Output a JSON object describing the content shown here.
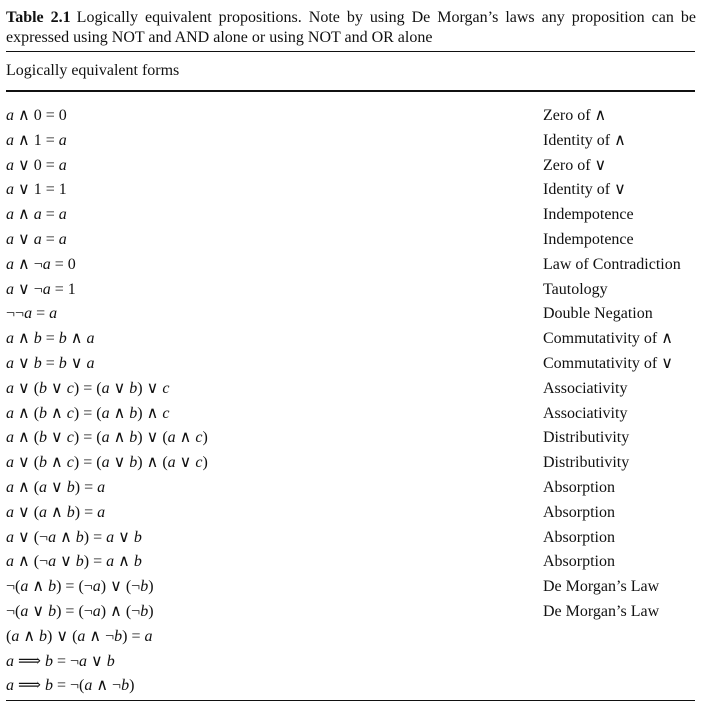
{
  "caption": {
    "label": "Table 2.1",
    "text": "Logically equivalent propositions. Note by using De Morgan’s laws any proposition can be expressed using NOT and AND alone or using NOT and OR alone"
  },
  "header": "Logically equivalent forms",
  "rows": [
    {
      "formula": "a ∧ 0 = 0",
      "name": "Zero of ∧"
    },
    {
      "formula": "a ∧ 1 = a",
      "name": "Identity of ∧"
    },
    {
      "formula": "a ∨ 0 = a",
      "name": "Zero of ∨"
    },
    {
      "formula": "a ∨ 1 = 1",
      "name": "Identity of ∨"
    },
    {
      "formula": "a ∧ a = a",
      "name": "Indempotence"
    },
    {
      "formula": "a ∨ a = a",
      "name": "Indempotence"
    },
    {
      "formula": "a ∧ ¬a = 0",
      "name": "Law of Contradiction"
    },
    {
      "formula": "a ∨ ¬a = 1",
      "name": "Tautology"
    },
    {
      "formula": "¬¬a = a",
      "name": "Double Negation"
    },
    {
      "formula": "a ∧ b = b ∧ a",
      "name": "Commutativity of ∧"
    },
    {
      "formula": "a ∨ b = b ∨ a",
      "name": "Commutativity of ∨"
    },
    {
      "formula": "a ∨ (b ∨ c) = (a ∨ b) ∨ c",
      "name": "Associativity"
    },
    {
      "formula": "a ∧ (b ∧ c) = (a ∧ b) ∧ c",
      "name": "Associativity"
    },
    {
      "formula": "a ∧ (b ∨ c) = (a ∧ b) ∨ (a ∧ c)",
      "name": "Distributivity"
    },
    {
      "formula": "a ∨ (b ∧ c) = (a ∨ b) ∧ (a ∨ c)",
      "name": "Distributivity"
    },
    {
      "formula": "a ∧ (a ∨ b) = a",
      "name": "Absorption"
    },
    {
      "formula": "a ∨ (a ∧ b) = a",
      "name": "Absorption"
    },
    {
      "formula": "a ∨ (¬a ∧ b) = a ∨ b",
      "name": "Absorption"
    },
    {
      "formula": "a ∧ (¬a ∨ b) = a ∧ b",
      "name": "Absorption"
    },
    {
      "formula": "¬(a ∧ b) = (¬a) ∨ (¬b)",
      "name": "De Morgan’s Law"
    },
    {
      "formula": "¬(a ∨ b) = (¬a) ∧ (¬b)",
      "name": "De Morgan’s Law"
    },
    {
      "formula": "(a ∧ b) ∨ (a ∧ ¬b) = a",
      "name": ""
    },
    {
      "formula": "a ⟹ b = ¬a ∨ b",
      "name": ""
    },
    {
      "formula": "a ⟹ b = ¬(a ∧ ¬b)",
      "name": ""
    }
  ]
}
